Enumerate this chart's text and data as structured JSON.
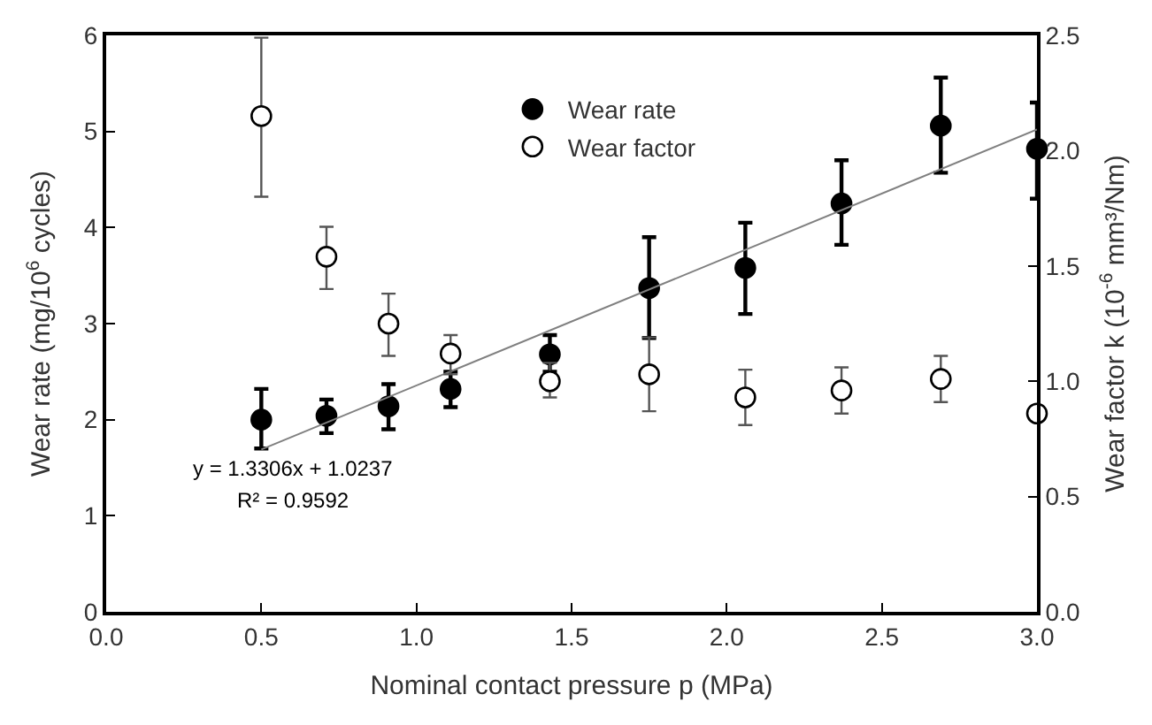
{
  "chart_data": {
    "type": "scatter",
    "xlabel": "Nominal contact pressure p (MPa)",
    "ylabel": "Wear rate (mg/10$^{6}$ cycles)",
    "y2label": "Wear factor k (10$^{-6}$ mm³/Nm)",
    "x": [
      0.5,
      0.71,
      0.91,
      1.11,
      1.43,
      1.75,
      2.06,
      2.37,
      2.69,
      3.0
    ],
    "series": [
      {
        "name": "Wear rate",
        "color": "#000000",
        "marker": "circle",
        "values": [
          2.0,
          2.04,
          2.14,
          2.32,
          2.68,
          3.37,
          3.58,
          4.25,
          5.06,
          4.82
        ],
        "errors": [
          [
            1.7,
            2.32
          ],
          [
            1.86,
            2.21
          ],
          [
            1.9,
            2.37
          ],
          [
            2.13,
            2.5
          ],
          [
            2.5,
            2.88
          ],
          [
            2.85,
            3.9
          ],
          [
            3.1,
            4.05
          ],
          [
            3.82,
            4.7
          ],
          [
            4.57,
            5.56
          ],
          [
            4.3,
            5.3
          ]
        ]
      },
      {
        "name": "Wear factor",
        "color": "#ffffff",
        "marker": "circle",
        "axis": "y2",
        "values": [
          2.15,
          1.54,
          1.25,
          1.12,
          1.0,
          1.03,
          0.93,
          0.96,
          1.01,
          0.86
        ],
        "errors": [
          [
            1.8,
            2.49
          ],
          [
            1.4,
            1.67
          ],
          [
            1.11,
            1.38
          ],
          [
            1.03,
            1.2
          ],
          [
            0.93,
            1.08
          ],
          [
            0.87,
            1.19
          ],
          [
            0.81,
            1.05
          ],
          [
            0.86,
            1.06
          ],
          [
            0.91,
            1.11
          ],
          null
        ]
      },
      {
        "type": "line",
        "color": "#808080",
        "marker": "none",
        "x": [
          0.5,
          3.0
        ],
        "values": [
          1.69,
          5.02
        ]
      }
    ],
    "annotations": [
      "y = 1.3306x + 1.0237",
      "R² = 0.9592"
    ],
    "xlim": [
      0.0,
      3.0
    ],
    "xticks": [
      {
        "value": 0,
        "label": "0.0"
      },
      0.5,
      {
        "value": 1,
        "label": "1.0"
      },
      1.5,
      {
        "value": 2,
        "label": "2.0"
      },
      2.5,
      {
        "value": 3,
        "label": "3.0"
      }
    ],
    "ylim": [
      0,
      6
    ],
    "yticks": [
      0,
      1,
      2,
      3,
      4,
      5,
      6
    ],
    "y2lim": [
      0.0,
      2.5
    ],
    "y2ticks": [
      {
        "value": 0,
        "label": "0.0"
      },
      0.5,
      {
        "value": 1,
        "label": "1.0"
      },
      1.5,
      {
        "value": 2,
        "label": "2.0"
      },
      2.5
    ],
    "legend": "top"
  }
}
